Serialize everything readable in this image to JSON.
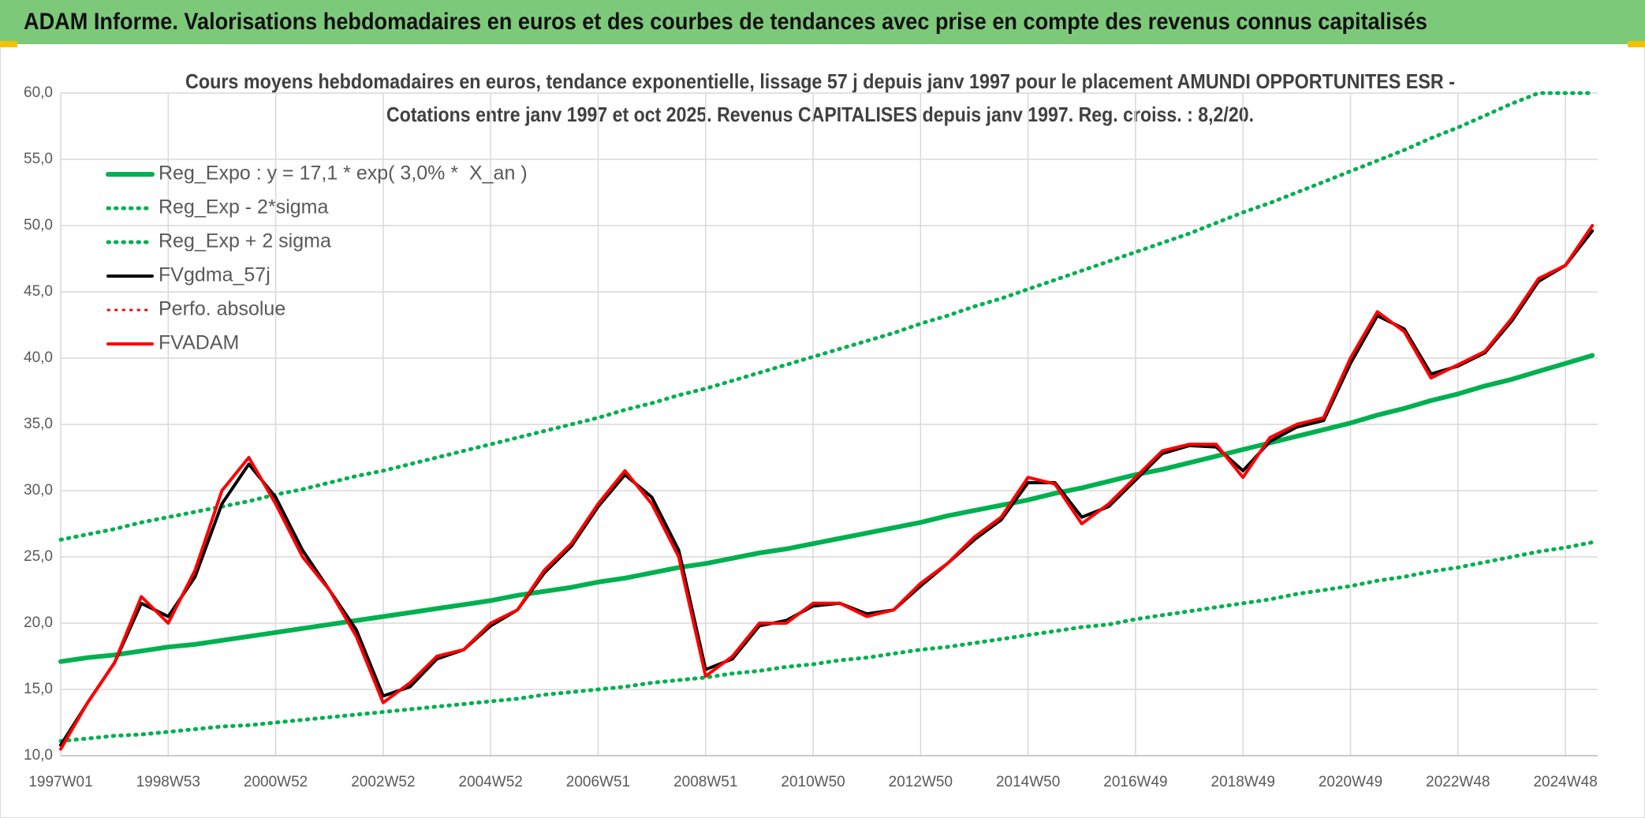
{
  "header": {
    "title": "ADAM Informe. Valorisations hebdomadaires en euros et des courbes de tendances avec prise en compte des revenus connus capitalisés"
  },
  "chart_data": {
    "type": "line",
    "title": [
      "Cours moyens hebdomadaires en euros, tendance exponentielle, lissage 57 j depuis janv 1997 pour le placement AMUNDI OPPORTUNITES ESR -",
      "Cotations entre janv 1997 et oct 2025. Revenus CAPITALISES depuis janv 1997. Reg. croiss. : 8,2/20."
    ],
    "categories": [
      "1997W01",
      null,
      null,
      null,
      "1998W53",
      null,
      null,
      null,
      "2000W52",
      null,
      null,
      null,
      "2002W52",
      null,
      null,
      null,
      "2004W52",
      null,
      null,
      null,
      "2006W51",
      null,
      null,
      null,
      "2008W51",
      null,
      null,
      null,
      "2010W50",
      null,
      null,
      null,
      "2012W50",
      null,
      null,
      null,
      "2014W50",
      null,
      null,
      null,
      "2016W49",
      null,
      null,
      null,
      "2018W49",
      null,
      null,
      null,
      "2020W49",
      null,
      null,
      null,
      "2022W48",
      null,
      null,
      null,
      "2024W48",
      null
    ],
    "ylim": [
      10,
      60
    ],
    "yticks": [
      {
        "value": 10,
        "label": "10,0"
      },
      {
        "value": 15,
        "label": "15,0"
      },
      {
        "value": 20,
        "label": "20,0"
      },
      {
        "value": 25,
        "label": "25,0"
      },
      {
        "value": 30,
        "label": "30,0"
      },
      {
        "value": 35,
        "label": "35,0"
      },
      {
        "value": 40,
        "label": "40,0"
      },
      {
        "value": 45,
        "label": "45,0"
      },
      {
        "value": 50,
        "label": "50,0"
      },
      {
        "value": 55,
        "label": "55,0"
      },
      {
        "value": 60,
        "label": "60,0"
      }
    ],
    "grid": true,
    "legend": "upper left",
    "series": [
      {
        "name": "Reg_Expo : y = 17,1 * exp( 3,0% *  X_an )",
        "color": "#00b050",
        "style": "solid",
        "width": 6,
        "values": [
          17.1,
          17.4,
          17.6,
          17.9,
          18.2,
          18.4,
          18.7,
          19.0,
          19.3,
          19.6,
          19.9,
          20.2,
          20.5,
          20.8,
          21.1,
          21.4,
          21.7,
          22.1,
          22.4,
          22.7,
          23.1,
          23.4,
          23.8,
          24.2,
          24.5,
          24.9,
          25.3,
          25.6,
          26.0,
          26.4,
          26.8,
          27.2,
          27.6,
          28.1,
          28.5,
          28.9,
          29.3,
          29.8,
          30.2,
          30.7,
          31.2,
          31.6,
          32.1,
          32.6,
          33.1,
          33.6,
          34.1,
          34.6,
          35.1,
          35.7,
          36.2,
          36.8,
          37.3,
          37.9,
          38.4,
          39.0,
          39.6,
          40.2
        ]
      },
      {
        "name": "Reg_Exp - 2*sigma",
        "color": "#00b050",
        "style": "dotted",
        "width": 5,
        "values": [
          11.1,
          11.3,
          11.5,
          11.6,
          11.8,
          12.0,
          12.2,
          12.3,
          12.5,
          12.7,
          12.9,
          13.1,
          13.3,
          13.5,
          13.7,
          13.9,
          14.1,
          14.3,
          14.6,
          14.8,
          15.0,
          15.2,
          15.5,
          15.7,
          15.9,
          16.2,
          16.4,
          16.7,
          16.9,
          17.2,
          17.4,
          17.7,
          18.0,
          18.2,
          18.5,
          18.8,
          19.1,
          19.4,
          19.7,
          19.9,
          20.3,
          20.6,
          20.9,
          21.2,
          21.5,
          21.8,
          22.2,
          22.5,
          22.8,
          23.2,
          23.5,
          23.9,
          24.2,
          24.6,
          25.0,
          25.4,
          25.7,
          26.1
        ]
      },
      {
        "name": "Reg_Exp + 2 sigma",
        "color": "#00b050",
        "style": "dotted",
        "width": 5,
        "values": [
          26.3,
          26.7,
          27.1,
          27.6,
          28.0,
          28.4,
          28.8,
          29.2,
          29.7,
          30.1,
          30.6,
          31.1,
          31.5,
          32.0,
          32.5,
          33.0,
          33.5,
          34.0,
          34.5,
          35.0,
          35.5,
          36.1,
          36.6,
          37.2,
          37.7,
          38.3,
          38.9,
          39.5,
          40.1,
          40.7,
          41.3,
          41.9,
          42.6,
          43.2,
          43.9,
          44.5,
          45.2,
          45.9,
          46.6,
          47.3,
          48.0,
          48.7,
          49.4,
          50.2,
          51.0,
          51.7,
          52.5,
          53.3,
          54.1,
          54.9,
          55.7,
          56.6,
          57.4,
          58.3,
          59.2,
          60,
          60,
          60
        ]
      },
      {
        "name": "FVgdma_57j",
        "color": "#000000",
        "style": "solid",
        "width": 4,
        "values": [
          10.8,
          14,
          17,
          21.5,
          20.5,
          23.5,
          29,
          32,
          29.5,
          25.5,
          22.5,
          19.5,
          14.5,
          15.2,
          17.3,
          18,
          19.8,
          21,
          23.8,
          25.8,
          28.8,
          31.2,
          29.5,
          25.5,
          16.5,
          17.3,
          19.8,
          20.2,
          21.3,
          21.5,
          20.7,
          21,
          22.8,
          24.5,
          26.3,
          27.8,
          30.6,
          30.6,
          28,
          28.8,
          30.8,
          32.8,
          33.4,
          33.3,
          31.5,
          33.7,
          34.8,
          35.3,
          39.6,
          43.2,
          42.2,
          38.8,
          39.4,
          40.4,
          42.8,
          45.8,
          47,
          49.6
        ]
      },
      {
        "name": "Perfo. absolue",
        "color": "#ff0000",
        "style": "dotted",
        "width": 3,
        "values": [
          null,
          null,
          null,
          null,
          null,
          null,
          null,
          null,
          null,
          null,
          null,
          null,
          null,
          null,
          null,
          null,
          null,
          null,
          null,
          null,
          null,
          null,
          null,
          null,
          null,
          null,
          null,
          null,
          null,
          null,
          null,
          null,
          null,
          null,
          null,
          null,
          null,
          null,
          null,
          null,
          null,
          null,
          null,
          null,
          null,
          null,
          null,
          null,
          null,
          null,
          null,
          null,
          null,
          null,
          null,
          null,
          null,
          null
        ]
      },
      {
        "name": "FVADAM",
        "color": "#ff0000",
        "style": "solid",
        "width": 4,
        "values": [
          10.5,
          14,
          17,
          22,
          20,
          24,
          30,
          32.5,
          29,
          25,
          22.5,
          19,
          14,
          15.5,
          17.5,
          18,
          20,
          21,
          24,
          26,
          29,
          31.5,
          29,
          25,
          16,
          17.5,
          20,
          20,
          21.5,
          21.5,
          20.5,
          21,
          23,
          24.5,
          26.5,
          28,
          31,
          30.5,
          27.5,
          29,
          31,
          33,
          33.5,
          33.5,
          31,
          34,
          35,
          35.5,
          40,
          43.5,
          42,
          38.5,
          39.5,
          40.5,
          43,
          46,
          47,
          50
        ]
      }
    ]
  }
}
